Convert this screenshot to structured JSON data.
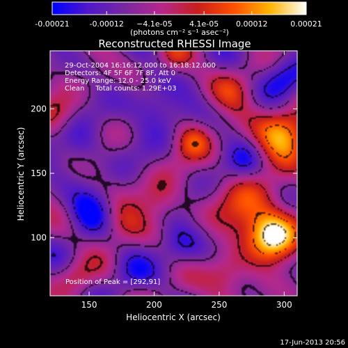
{
  "chart_data": {
    "type": "heatmap",
    "title": "Reconstructed RHESSI Image",
    "xlabel": "Heliocentric X (arcsec)",
    "ylabel": "Heliocentric Y (arcsec)",
    "xlim": [
      120,
      310
    ],
    "ylim": [
      55,
      245
    ],
    "x_ticks": [
      150,
      200,
      250,
      300
    ],
    "x_tick_labels": [
      "150",
      "200",
      "250",
      "300"
    ],
    "y_ticks": [
      100,
      150,
      200
    ],
    "y_tick_labels": [
      "100",
      "150",
      "200"
    ],
    "colorbar": {
      "range": [
        -0.00021,
        0.00021
      ],
      "ticks": [
        -0.00021,
        -0.00012,
        -4.1e-05,
        4.1e-05,
        0.00012,
        0.00021
      ],
      "tick_labels": [
        "-0.00021",
        "-0.00012",
        "−4.1e-05",
        "4.1e-05",
        "0.00012",
        "0.00021"
      ],
      "unit_label": "(photons cm⁻² s⁻¹ asec⁻²)",
      "colors": [
        "#0000ff",
        "#5018c8",
        "#7828a0",
        "#b4288c",
        "#c81e1e",
        "#ff5000",
        "#ffb400",
        "#ffffff"
      ]
    },
    "annotations": [
      "29-Oct-2004 16:16:12.000 to 16:18:12.000",
      "Detectors: 4F 5F 6F 7F 8F, Att 0",
      "Energy Range: 12.0 - 25.0 keV",
      "Clean     Total counts: 1.29E+03"
    ],
    "peak_label": "Position of Peak = [292,91]",
    "peak": [
      292,
      91
    ],
    "bright_regions": [
      {
        "x": 292,
        "y": 101,
        "strength": 1.0,
        "sigma": 13
      },
      {
        "x": 300,
        "y": 180,
        "strength": 0.85,
        "sigma": 15
      },
      {
        "x": 275,
        "y": 120,
        "strength": 0.55,
        "sigma": 18
      },
      {
        "x": 230,
        "y": 175,
        "strength": 0.5,
        "sigma": 10
      },
      {
        "x": 260,
        "y": 215,
        "strength": 0.35,
        "sigma": 12
      },
      {
        "x": 175,
        "y": 110,
        "strength": 0.4,
        "sigma": 12
      },
      {
        "x": 205,
        "y": 130,
        "strength": 0.35,
        "sigma": 12
      },
      {
        "x": 125,
        "y": 195,
        "strength": 0.3,
        "sigma": 10
      },
      {
        "x": 255,
        "y": 70,
        "strength": 0.45,
        "sigma": 12
      },
      {
        "x": 140,
        "y": 70,
        "strength": 0.3,
        "sigma": 10
      },
      {
        "x": 215,
        "y": 240,
        "strength": 0.3,
        "sigma": 9
      }
    ],
    "dark_regions": [
      {
        "x": 150,
        "y": 120,
        "strength": -0.5,
        "sigma": 12
      },
      {
        "x": 200,
        "y": 200,
        "strength": -0.4,
        "sigma": 14
      },
      {
        "x": 300,
        "y": 225,
        "strength": -0.5,
        "sigma": 12
      },
      {
        "x": 220,
        "y": 95,
        "strength": -0.35,
        "sigma": 12
      },
      {
        "x": 270,
        "y": 160,
        "strength": -0.3,
        "sigma": 10
      },
      {
        "x": 145,
        "y": 170,
        "strength": -0.3,
        "sigma": 12
      },
      {
        "x": 180,
        "y": 75,
        "strength": -0.25,
        "sigma": 12
      }
    ]
  },
  "footer": {
    "timestamp": "17-Jun-2013 20:56"
  }
}
